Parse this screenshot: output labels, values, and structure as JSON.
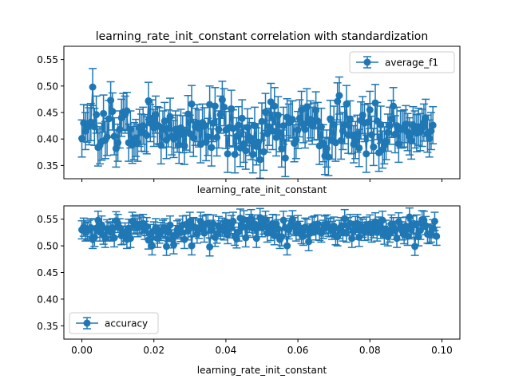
{
  "figure_title": "learning_rate_init_constant correlation with standardization",
  "colors": {
    "series": "#1f77b4",
    "axes": "#000000",
    "legend_border": "#cccccc"
  },
  "chart_data": [
    {
      "type": "scatter",
      "style": "line-with-markers-and-errorbars",
      "title": "learning_rate_init_constant correlation with standardization",
      "xlabel": "learning_rate_init_constant",
      "ylabel": "",
      "xlim": [
        -0.005,
        0.105
      ],
      "ylim": [
        0.325,
        0.575
      ],
      "x_ticks": [
        0.0,
        0.02,
        0.04,
        0.06,
        0.08,
        0.1
      ],
      "x_tick_labels": [],
      "y_ticks": [
        0.35,
        0.4,
        0.45,
        0.5,
        0.55
      ],
      "y_tick_labels": [
        "0.35",
        "0.40",
        "0.45",
        "0.50",
        "0.55"
      ],
      "legend": {
        "entries": [
          "average_f1"
        ],
        "placement": "upper right"
      },
      "grid": false,
      "series": [
        {
          "name": "average_f1",
          "x_start": 0.0,
          "x_step": 0.0005,
          "y": [
            0.401,
            0.43,
            0.415,
            0.429,
            0.424,
            0.432,
            0.498,
            0.423,
            0.446,
            0.384,
            0.388,
            0.395,
            0.448,
            0.398,
            0.404,
            0.438,
            0.473,
            0.452,
            0.405,
            0.382,
            0.393,
            0.418,
            0.44,
            0.451,
            0.446,
            0.453,
            0.393,
            0.418,
            0.389,
            0.396,
            0.402,
            0.393,
            0.421,
            0.412,
            0.425,
            0.411,
            0.407,
            0.472,
            0.43,
            0.439,
            0.421,
            0.446,
            0.426,
            0.424,
            0.388,
            0.418,
            0.434,
            0.398,
            0.42,
            0.442,
            0.405,
            0.4,
            0.418,
            0.41,
            0.389,
            0.421,
            0.409,
            0.387,
            0.414,
            0.447,
            0.41,
            0.466,
            0.402,
            0.423,
            0.43,
            0.42,
            0.39,
            0.431,
            0.424,
            0.394,
            0.404,
            0.465,
            0.384,
            0.43,
            0.462,
            0.403,
            0.418,
            0.446,
            0.474,
            0.46,
            0.417,
            0.372,
            0.422,
            0.457,
            0.42,
            0.371,
            0.405,
            0.426,
            0.383,
            0.439,
            0.391,
            0.378,
            0.422,
            0.404,
            0.396,
            0.371,
            0.425,
            0.386,
            0.394,
            0.361,
            0.433,
            0.376,
            0.451,
            0.41,
            0.423,
            0.47,
            0.415,
            0.462,
            0.403,
            0.445,
            0.411,
            0.382,
            0.425,
            0.364,
            0.441,
            0.431,
            0.437,
            0.437,
            0.392,
            0.398,
            0.417,
            0.439,
            0.455,
            0.428,
            0.418,
            0.46,
            0.431,
            0.437,
            0.425,
            0.433,
            0.454,
            0.434,
            0.387,
            0.423,
            0.392,
            0.368,
            0.382,
            0.366,
            0.438,
            0.397,
            0.427,
            0.393,
            0.471,
            0.482,
            0.397,
            0.415,
            0.426,
            0.466,
            0.408,
            0.437,
            0.407,
            0.39,
            0.398,
            0.41,
            0.383,
            0.435,
            0.445,
            0.43,
            0.372,
            0.432,
            0.455,
            0.408,
            0.385,
            0.468,
            0.434,
            0.374,
            0.427,
            0.38,
            0.388,
            0.396,
            0.412,
            0.425,
            0.438,
            0.462,
            0.409,
            0.425,
            0.391,
            0.418,
            0.418,
            0.42,
            0.428,
            0.413,
            0.405,
            0.397,
            0.426,
            0.418,
            0.411,
            0.423,
            0.413,
            0.421,
            0.431,
            0.44,
            0.41,
            0.401,
            0.415,
            0.426
          ],
          "err": 0.035
        }
      ]
    },
    {
      "type": "scatter",
      "style": "line-with-markers-and-errorbars",
      "title": "",
      "xlabel": "learning_rate_init_constant",
      "ylabel": "",
      "xlim": [
        -0.005,
        0.105
      ],
      "ylim": [
        0.325,
        0.575
      ],
      "x_ticks": [
        0.0,
        0.02,
        0.04,
        0.06,
        0.08,
        0.1
      ],
      "x_tick_labels": [
        "0.00",
        "0.02",
        "0.04",
        "0.06",
        "0.08",
        "0.10"
      ],
      "y_ticks": [
        0.35,
        0.4,
        0.45,
        0.5,
        0.55
      ],
      "y_tick_labels": [
        "0.35",
        "0.40",
        "0.45",
        "0.50",
        "0.55"
      ],
      "legend": {
        "entries": [
          "accuracy"
        ],
        "placement": "lower left"
      },
      "grid": false,
      "series": [
        {
          "name": "accuracy",
          "x_start": 0.0,
          "x_step": 0.0005,
          "y": [
            0.53,
            0.535,
            0.526,
            0.528,
            0.531,
            0.534,
            0.512,
            0.516,
            0.533,
            0.548,
            0.526,
            0.539,
            0.52,
            0.514,
            0.532,
            0.528,
            0.526,
            0.534,
            0.515,
            0.547,
            0.542,
            0.534,
            0.519,
            0.52,
            0.526,
            0.512,
            0.533,
            0.514,
            0.546,
            0.539,
            0.541,
            0.534,
            0.54,
            0.537,
            0.542,
            0.529,
            0.536,
            0.511,
            0.523,
            0.5,
            0.528,
            0.534,
            0.514,
            0.522,
            0.527,
            0.531,
            0.534,
            0.499,
            0.525,
            0.539,
            0.513,
            0.502,
            0.521,
            0.53,
            0.533,
            0.525,
            0.539,
            0.512,
            0.54,
            0.528,
            0.546,
            0.5,
            0.536,
            0.534,
            0.522,
            0.531,
            0.546,
            0.539,
            0.524,
            0.541,
            0.542,
            0.498,
            0.531,
            0.541,
            0.516,
            0.522,
            0.538,
            0.53,
            0.535,
            0.528,
            0.545,
            0.521,
            0.532,
            0.54,
            0.546,
            0.518,
            0.513,
            0.526,
            0.552,
            0.535,
            0.549,
            0.515,
            0.536,
            0.542,
            0.551,
            0.533,
            0.541,
            0.514,
            0.534,
            0.553,
            0.534,
            0.539,
            0.548,
            0.524,
            0.536,
            0.527,
            0.542,
            0.519,
            0.541,
            0.532,
            0.512,
            0.517,
            0.548,
            0.534,
            0.5,
            0.53,
            0.539,
            0.549,
            0.536,
            0.526,
            0.54,
            0.529,
            0.521,
            0.518,
            0.535,
            0.533,
            0.508,
            0.524,
            0.537,
            0.539,
            0.528,
            0.541,
            0.527,
            0.524,
            0.531,
            0.539,
            0.541,
            0.535,
            0.534,
            0.529,
            0.537,
            0.519,
            0.517,
            0.531,
            0.536,
            0.526,
            0.551,
            0.524,
            0.536,
            0.542,
            0.514,
            0.529,
            0.538,
            0.542,
            0.516,
            0.536,
            0.533,
            0.527,
            0.537,
            0.528,
            0.541,
            0.524,
            0.532,
            0.545,
            0.526,
            0.537,
            0.531,
            0.548,
            0.52,
            0.531,
            0.517,
            0.524,
            0.541,
            0.536,
            0.529,
            0.514,
            0.545,
            0.536,
            0.528,
            0.521,
            0.537,
            0.518,
            0.554,
            0.53,
            0.539,
            0.499,
            0.541,
            0.517,
            0.529,
            0.549,
            0.548,
            0.538,
            0.522,
            0.521,
            0.524,
            0.532,
            0.546,
            0.518
          ],
          "err": 0.017
        }
      ]
    }
  ]
}
